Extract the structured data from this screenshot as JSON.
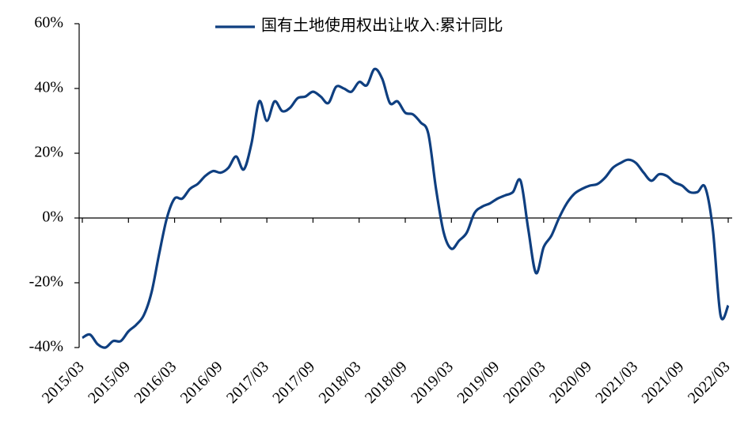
{
  "chart_data": {
    "type": "line",
    "categories": [
      "2015/03",
      null,
      null,
      null,
      null,
      null,
      "2015/09",
      null,
      null,
      null,
      null,
      null,
      "2016/03",
      null,
      null,
      null,
      null,
      null,
      "2016/09",
      null,
      null,
      null,
      null,
      null,
      "2017/03",
      null,
      null,
      null,
      null,
      null,
      "2017/09",
      null,
      null,
      null,
      null,
      null,
      "2018/03",
      null,
      null,
      null,
      null,
      null,
      "2018/09",
      null,
      null,
      null,
      null,
      null,
      "2019/03",
      null,
      null,
      null,
      null,
      null,
      "2019/09",
      null,
      null,
      null,
      null,
      null,
      "2020/03",
      null,
      null,
      null,
      null,
      null,
      "2020/09",
      null,
      null,
      null,
      null,
      null,
      "2021/03",
      null,
      null,
      null,
      null,
      null,
      "2021/09",
      null,
      null,
      null,
      null,
      null,
      "2022/03"
    ],
    "series": [
      {
        "name": "国有土地使用权出让收入:累计同比",
        "color": "#0f3f80",
        "values": [
          -37,
          -36,
          -39,
          -40,
          -38,
          -38,
          -35,
          -33,
          -30,
          -23,
          -11,
          0,
          6,
          6,
          9,
          10.5,
          13,
          14.5,
          14,
          15.5,
          19,
          15,
          23,
          36,
          30,
          36,
          33,
          34,
          37,
          37.5,
          39,
          37.5,
          35.5,
          40.5,
          40,
          39,
          42,
          41,
          46,
          43,
          35.5,
          36,
          32.5,
          32,
          29.5,
          26,
          9,
          -4.5,
          -9.5,
          -7,
          -4.5,
          1.5,
          3.5,
          4.5,
          6,
          7,
          8,
          11.5,
          -3.5,
          -17,
          -9,
          -5.5,
          0,
          4.5,
          7.5,
          9,
          10,
          10.5,
          12.5,
          15.5,
          17,
          18,
          17,
          14,
          11.5,
          13.5,
          13,
          11,
          10,
          8,
          8,
          9.5,
          -3.5,
          -30,
          -27
        ]
      }
    ],
    "ylim": [
      -40,
      60
    ],
    "yticks": [
      {
        "value": -40,
        "label": "-40%"
      },
      {
        "value": -20,
        "label": "-20%"
      },
      {
        "value": 0,
        "label": "0%"
      },
      {
        "value": 20,
        "label": "20%"
      },
      {
        "value": 40,
        "label": "40%"
      },
      {
        "value": 60,
        "label": "60%"
      }
    ],
    "legend": "top"
  }
}
